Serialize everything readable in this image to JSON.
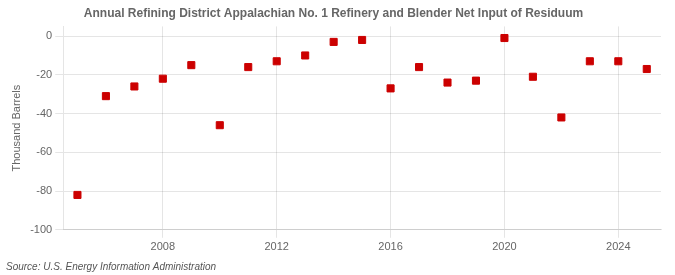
{
  "chart_data": {
    "type": "scatter",
    "title": "Annual Refining District Appalachian No. 1 Refinery and Blender Net Input of Residuum",
    "ylabel": "Thousand Barrels",
    "source": "Source: U.S. Energy Information Administration",
    "x": [
      2005,
      2006,
      2007,
      2008,
      2009,
      2010,
      2011,
      2012,
      2013,
      2014,
      2015,
      2016,
      2017,
      2018,
      2019,
      2020,
      2021,
      2022,
      2023,
      2024,
      2025
    ],
    "values": [
      -82,
      -31,
      -26,
      -22,
      -15,
      -46,
      -16,
      -13,
      -10,
      -3,
      -2,
      -27,
      -16,
      -24,
      -23,
      -1,
      -21,
      -42,
      -13,
      -13,
      -17
    ],
    "color": "#cc0000",
    "marker": "square",
    "xlim": [
      2004.5,
      2025.5
    ],
    "xticks": [
      2008,
      2012,
      2016,
      2020,
      2024
    ],
    "ylim": [
      -100,
      5
    ],
    "yticks": [
      0,
      -20,
      -40,
      -60,
      -80,
      -100
    ],
    "grid": true
  }
}
